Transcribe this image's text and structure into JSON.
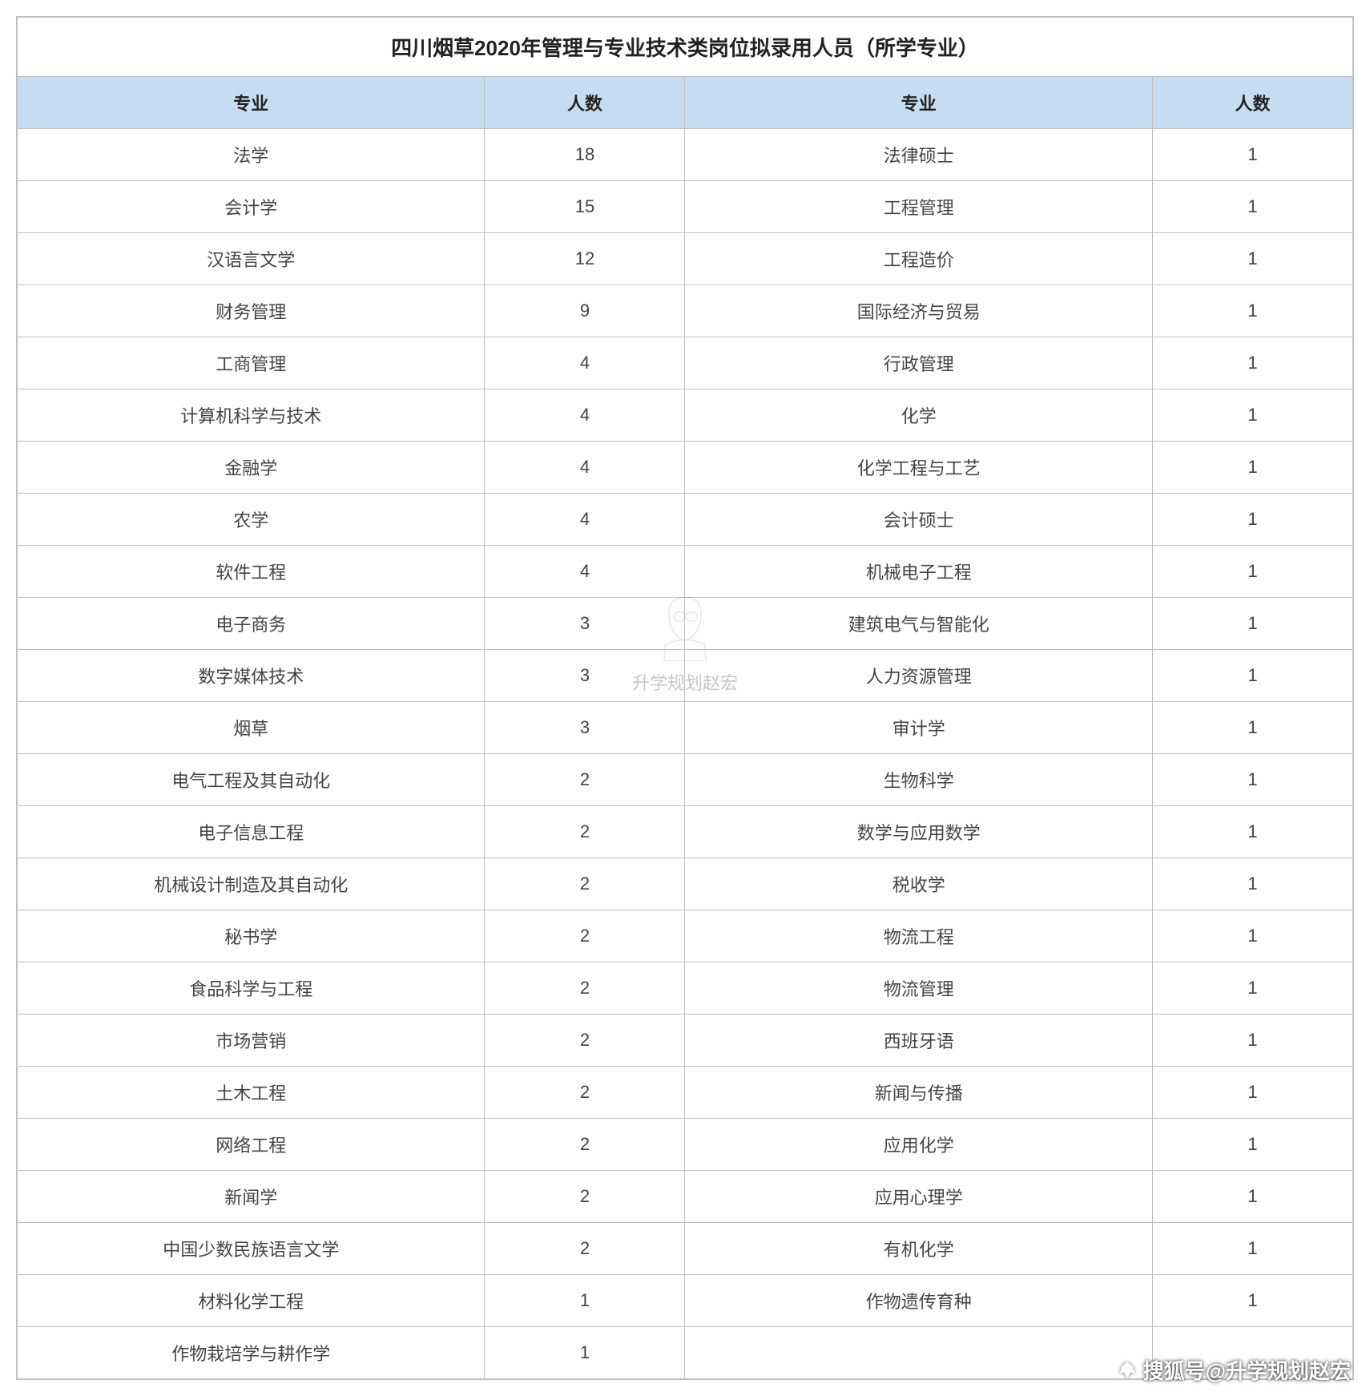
{
  "table": {
    "title": "四川烟草2020年管理与专业技术类岗位拟录用人员（所学专业）",
    "columns": [
      "专业",
      "人数",
      "专业",
      "人数"
    ],
    "col_widths": [
      "35%",
      "15%",
      "35%",
      "15%"
    ],
    "header_bg": "#c6ddf1",
    "border_color": "#c0c0c0",
    "title_fontsize": 26,
    "header_fontsize": 22,
    "cell_fontsize": 22,
    "rows": [
      [
        "法学",
        "18",
        "法律硕士",
        "1"
      ],
      [
        "会计学",
        "15",
        "工程管理",
        "1"
      ],
      [
        "汉语言文学",
        "12",
        "工程造价",
        "1"
      ],
      [
        "财务管理",
        "9",
        "国际经济与贸易",
        "1"
      ],
      [
        "工商管理",
        "4",
        "行政管理",
        "1"
      ],
      [
        "计算机科学与技术",
        "4",
        "化学",
        "1"
      ],
      [
        "金融学",
        "4",
        "化学工程与工艺",
        "1"
      ],
      [
        "农学",
        "4",
        "会计硕士",
        "1"
      ],
      [
        "软件工程",
        "4",
        "机械电子工程",
        "1"
      ],
      [
        "电子商务",
        "3",
        "建筑电气与智能化",
        "1"
      ],
      [
        "数字媒体技术",
        "3",
        "人力资源管理",
        "1"
      ],
      [
        "烟草",
        "3",
        "审计学",
        "1"
      ],
      [
        "电气工程及其自动化",
        "2",
        "生物科学",
        "1"
      ],
      [
        "电子信息工程",
        "2",
        "数学与应用数学",
        "1"
      ],
      [
        "机械设计制造及其自动化",
        "2",
        "税收学",
        "1"
      ],
      [
        "秘书学",
        "2",
        "物流工程",
        "1"
      ],
      [
        "食品科学与工程",
        "2",
        "物流管理",
        "1"
      ],
      [
        "市场营销",
        "2",
        "西班牙语",
        "1"
      ],
      [
        "土木工程",
        "2",
        "新闻与传播",
        "1"
      ],
      [
        "网络工程",
        "2",
        "应用化学",
        "1"
      ],
      [
        "新闻学",
        "2",
        "应用心理学",
        "1"
      ],
      [
        "中国少数民族语言文学",
        "2",
        "有机化学",
        "1"
      ],
      [
        "材料化学工程",
        "1",
        "作物遗传育种",
        "1"
      ],
      [
        "作物栽培学与耕作学",
        "1",
        "",
        ""
      ]
    ]
  },
  "watermark_center": "升学规划赵宏",
  "watermark_bottom": "搜狐号@升学规划赵宏"
}
